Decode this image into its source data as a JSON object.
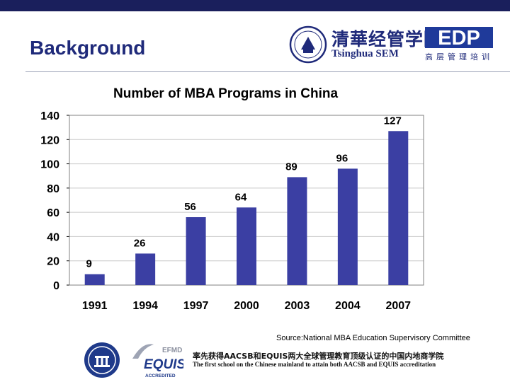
{
  "header": {
    "title": "Background",
    "logo_cn": "清華经管学院",
    "logo_en": "Tsinghua SEM",
    "edp_logo": "EDP",
    "edp_sub": "高层管理培训"
  },
  "chart_data": {
    "type": "bar",
    "title": "Number of MBA Programs in China",
    "categories": [
      "1991",
      "1994",
      "1997",
      "2000",
      "2003",
      "2004",
      "2007"
    ],
    "values": [
      9,
      26,
      56,
      64,
      89,
      96,
      127
    ],
    "y_ticks": [
      "0",
      "20",
      "40",
      "60",
      "80",
      "100",
      "120",
      "140"
    ],
    "ylim": [
      0,
      140
    ],
    "grid": true,
    "legend": "none",
    "bar_color": "#3b3fa3"
  },
  "footer": {
    "source": "Source:National MBA Education Supervisory Committee",
    "equis_top": "EFMD",
    "equis_main": "EQUIS",
    "equis_sub": "ACCREDITED",
    "accred_cn": "率先获得AACSB和EQUIS两大全球管理教育顶级认证的中国内地商学院",
    "accred_en": "The first school on the Chinese mainland to attain both AACSB and EQUIS accreditation"
  },
  "colors": {
    "navy": "#1f2a7a",
    "bar": "#3b3fa3",
    "edp_blue": "#1f3a9a"
  },
  "icons": [
    "tsinghua-seal-icon",
    "edp-logo-icon",
    "equis-logo-icon"
  ]
}
